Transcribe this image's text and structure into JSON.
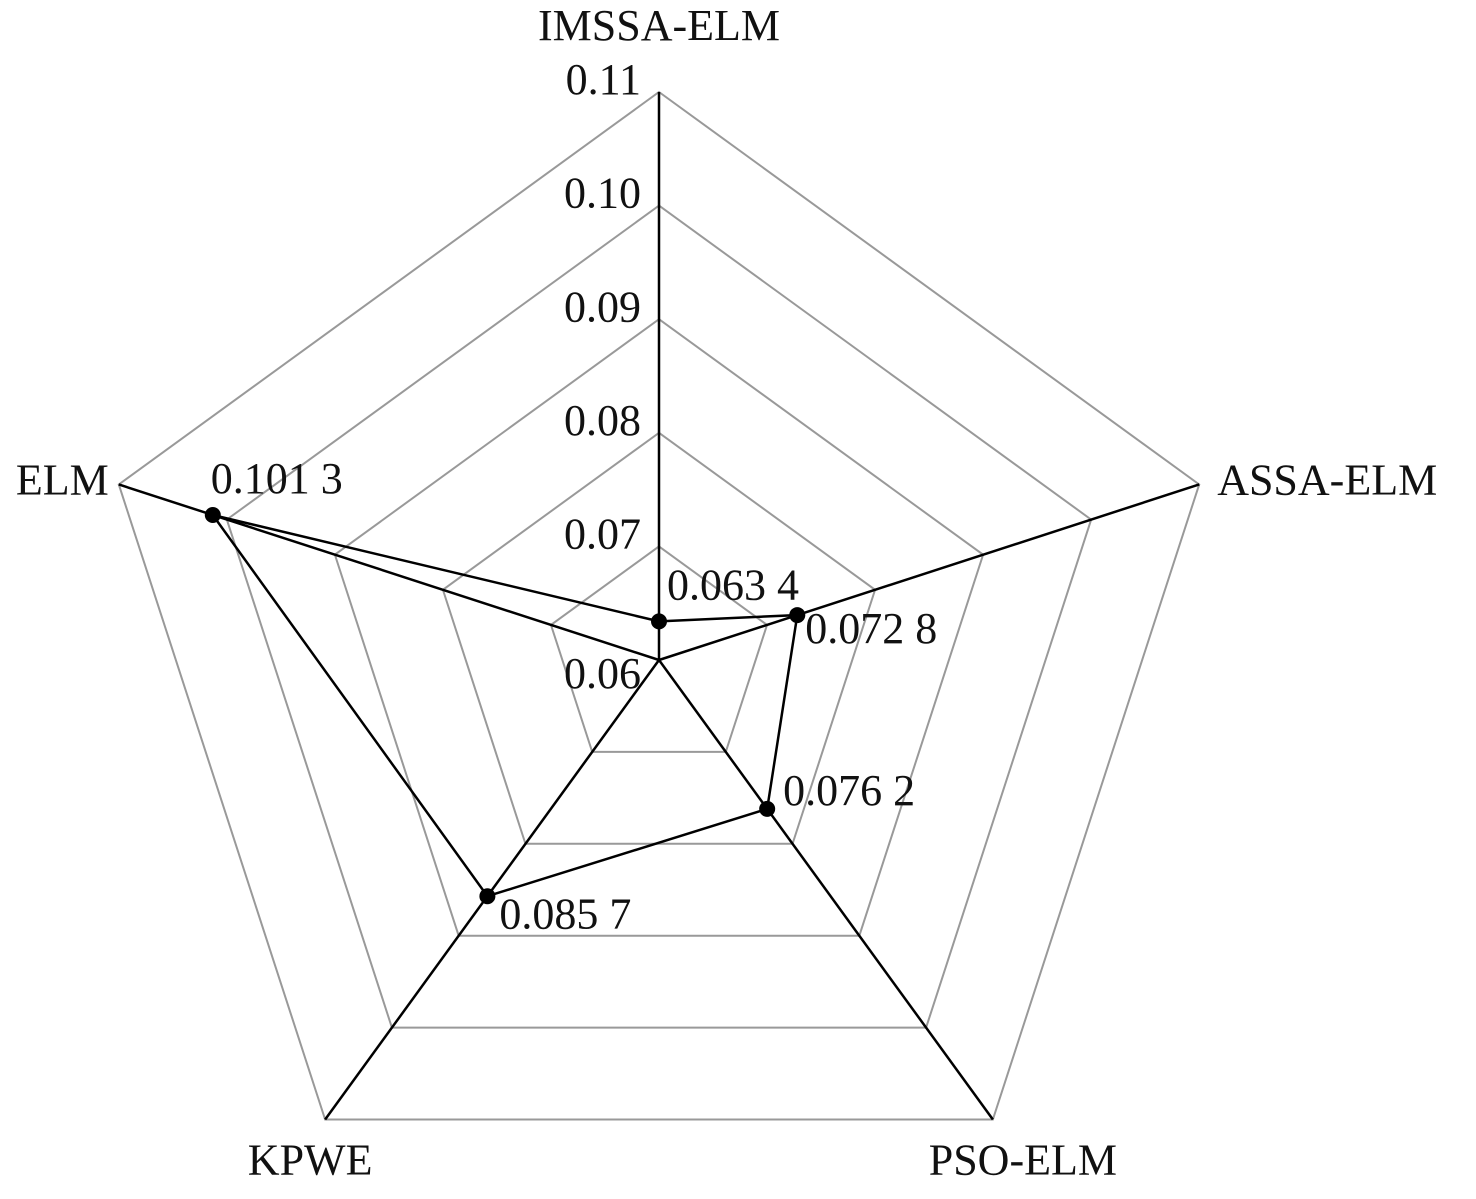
{
  "chart_data": {
    "type": "radar",
    "categories": [
      "IMSSA-ELM",
      "ASSA-ELM",
      "PSO-ELM",
      "KPWE",
      "ELM"
    ],
    "values": [
      0.0634,
      0.0728,
      0.0762,
      0.0857,
      0.1013
    ],
    "value_labels": [
      "0.063 4",
      "0.072 8",
      "0.076 2",
      "0.085 7",
      "0.101 3"
    ],
    "rlim": [
      0.06,
      0.11
    ],
    "rticks": [
      0.06,
      0.07,
      0.08,
      0.09,
      {
        "value": 0.1,
        "label": "0.10"
      },
      0.11
    ],
    "grid": true,
    "color": "#000000",
    "grid_color": "#999999"
  }
}
